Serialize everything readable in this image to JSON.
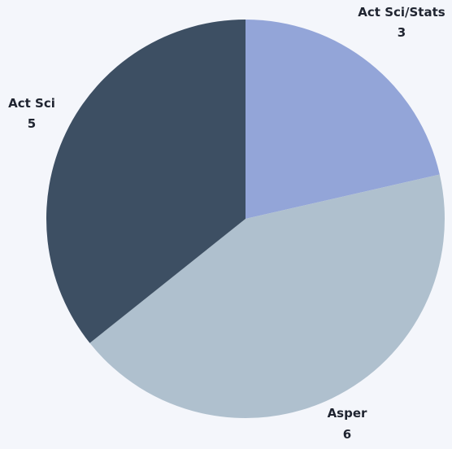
{
  "chart_data": {
    "type": "pie",
    "title": "",
    "slices": [
      {
        "label": "Act Sci/Stats",
        "value": 3,
        "color": "#93a5d8"
      },
      {
        "label": "Asper",
        "value": 6,
        "color": "#afc0ce"
      },
      {
        "label": "Act Sci",
        "value": 5,
        "color": "#3d4f63"
      }
    ],
    "start_angle_deg": 0,
    "direction": "clockwise",
    "legend": "none",
    "data_labels": "outside"
  },
  "colors": {
    "background": "#f4f6fb",
    "label_text": "#1f2430"
  }
}
